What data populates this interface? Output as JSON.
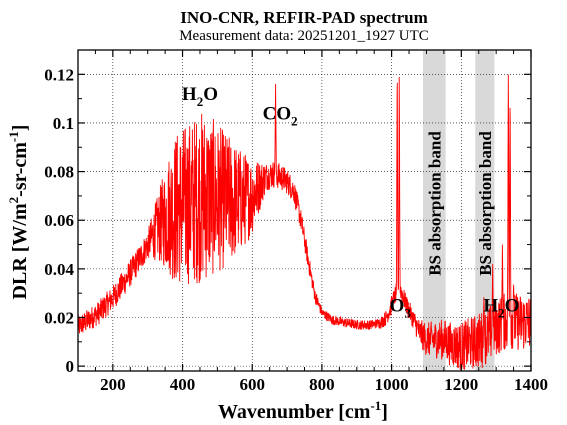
{
  "chart_data": {
    "type": "line",
    "title": "INO-CNR, REFIR-PAD spectrum",
    "subtitle": "Measurement data: 20251201_1927 UTC",
    "xlabel": {
      "main": "Wavenumber [cm",
      "sup": "-1",
      "close": "]"
    },
    "ylabel": {
      "p1": "DLR [W/m",
      "sup1": "2",
      "p2": "-sr-cm",
      "sup2": "-1",
      "close": "]"
    },
    "xlim": [
      100,
      1400
    ],
    "ylim": [
      -0.002,
      0.13
    ],
    "xticks": [
      200,
      400,
      600,
      800,
      1000,
      1200,
      1400
    ],
    "xtick_labels": [
      "200",
      "400",
      "600",
      "800",
      "1000",
      "1200",
      "1400"
    ],
    "yticks": [
      0,
      0.02,
      0.04,
      0.06,
      0.08,
      0.1,
      0.12
    ],
    "ytick_labels": [
      "0",
      "0.02",
      "0.04",
      "0.06",
      "0.08",
      "0.1",
      "0.12"
    ],
    "grid": true,
    "colors": {
      "series": "#ff0000",
      "band": "#d9d9d9",
      "grid": "#000000"
    },
    "shaded_bands": [
      {
        "x0": 1090,
        "x1": 1155,
        "label": "BS absorption band"
      },
      {
        "x0": 1240,
        "x1": 1295,
        "label": "BS absorption band"
      }
    ],
    "annotations": [
      {
        "base": "H",
        "sub": "2",
        "tail": "O",
        "x": 450,
        "y": 0.1095
      },
      {
        "base": "CO",
        "sub": "2",
        "tail": "",
        "x": 680,
        "y": 0.1015
      },
      {
        "base": "O",
        "sub": "3",
        "tail": "",
        "x": 1025,
        "y": 0.0225
      },
      {
        "base": "H",
        "sub": "2",
        "tail": "O",
        "x": 1315,
        "y": 0.0225
      }
    ],
    "series": [
      {
        "envelope": [
          [
            100,
            0.016
          ],
          [
            130,
            0.019
          ],
          [
            160,
            0.022
          ],
          [
            200,
            0.028
          ],
          [
            240,
            0.036
          ],
          [
            280,
            0.045
          ],
          [
            320,
            0.055
          ],
          [
            360,
            0.063
          ],
          [
            400,
            0.066
          ],
          [
            430,
            0.068
          ],
          [
            460,
            0.07
          ],
          [
            500,
            0.069
          ],
          [
            540,
            0.068
          ],
          [
            570,
            0.068
          ],
          [
            600,
            0.07
          ],
          [
            620,
            0.074
          ],
          [
            640,
            0.078
          ],
          [
            660,
            0.079
          ],
          [
            680,
            0.078
          ],
          [
            700,
            0.076
          ],
          [
            720,
            0.072
          ],
          [
            740,
            0.06
          ],
          [
            760,
            0.044
          ],
          [
            780,
            0.029
          ],
          [
            800,
            0.022
          ],
          [
            830,
            0.019
          ],
          [
            860,
            0.018
          ],
          [
            900,
            0.017
          ],
          [
            940,
            0.017
          ],
          [
            970,
            0.018
          ],
          [
            985,
            0.02
          ],
          [
            1000,
            0.025
          ],
          [
            1010,
            0.029
          ],
          [
            1020,
            0.033
          ],
          [
            1030,
            0.03
          ],
          [
            1040,
            0.026
          ],
          [
            1060,
            0.02
          ],
          [
            1080,
            0.014
          ],
          [
            1100,
            0.011
          ],
          [
            1150,
            0.011
          ],
          [
            1170,
            0.009
          ],
          [
            1200,
            0.008
          ],
          [
            1220,
            0.009
          ],
          [
            1240,
            0.01
          ],
          [
            1260,
            0.011
          ],
          [
            1280,
            0.013
          ],
          [
            1300,
            0.016
          ],
          [
            1320,
            0.018
          ],
          [
            1340,
            0.019
          ],
          [
            1370,
            0.018
          ],
          [
            1400,
            0.018
          ]
        ],
        "noise": [
          [
            100,
            0.0045
          ],
          [
            300,
            0.006
          ],
          [
            330,
            0.014
          ],
          [
            380,
            0.032
          ],
          [
            460,
            0.036
          ],
          [
            540,
            0.026
          ],
          [
            600,
            0.016
          ],
          [
            640,
            0.006
          ],
          [
            720,
            0.005
          ],
          [
            760,
            0.004
          ],
          [
            800,
            0.002
          ],
          [
            960,
            0.002
          ],
          [
            1000,
            0.004
          ],
          [
            1060,
            0.004
          ],
          [
            1100,
            0.007
          ],
          [
            1260,
            0.012
          ],
          [
            1400,
            0.012
          ]
        ],
        "spikes": [
          [
            667,
            0.116
          ],
          [
            1016,
            0.13
          ],
          [
            1022,
            0.123
          ],
          [
            1335,
            0.13
          ],
          [
            1340,
            0.12
          ],
          [
            1318,
            0.05
          ],
          [
            1290,
            0.042
          ],
          [
            1350,
            0.035
          ],
          [
            1265,
            0.03
          ]
        ]
      }
    ]
  }
}
